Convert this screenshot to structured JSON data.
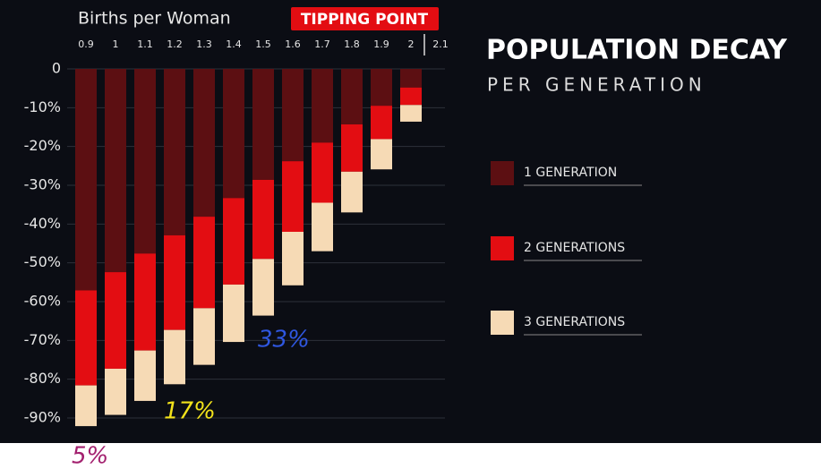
{
  "chart_data": {
    "type": "stacked_bar",
    "title": "POPULATION DECAY",
    "subtitle": "PER GENERATION",
    "x_label": "Births per Woman",
    "marker_label": "TIPPING POINT",
    "categories": [
      "0.9",
      "1",
      "1.1",
      "1.2",
      "1.3",
      "1.4",
      "1.5",
      "1.6",
      "1.7",
      "1.8",
      "1.9",
      "2",
      "2.1"
    ],
    "series": [
      {
        "name": "1 GENERATION",
        "color": "#5c0f12",
        "values": [
          -57.1,
          -52.4,
          -47.6,
          -42.9,
          -38.1,
          -33.3,
          -28.6,
          -23.8,
          -19.0,
          -14.3,
          -9.5,
          -4.8,
          0
        ]
      },
      {
        "name": "2 GENERATIONS",
        "color": "#e30d12",
        "values": [
          -24.5,
          -24.9,
          -25.0,
          -24.4,
          -23.6,
          -22.3,
          -20.4,
          -18.2,
          -15.5,
          -12.2,
          -8.6,
          -4.5,
          0
        ]
      },
      {
        "name": "3 GENERATIONS",
        "color": "#f6dab5",
        "values": [
          -10.5,
          -11.9,
          -13.0,
          -14.0,
          -14.6,
          -14.8,
          -14.6,
          -13.8,
          -12.5,
          -10.5,
          -7.8,
          -4.3,
          0
        ]
      }
    ],
    "ylim": [
      -95,
      0
    ],
    "yticks": [
      0,
      {
        "value": -10,
        "label": "-10%"
      },
      {
        "value": -20,
        "label": "-20%"
      },
      {
        "value": -30,
        "label": "-30%"
      },
      {
        "value": -40,
        "label": "-40%"
      },
      {
        "value": -50,
        "label": "-50%"
      },
      {
        "value": -60,
        "label": "-60%"
      },
      {
        "value": -70,
        "label": "-70%"
      },
      {
        "value": -80,
        "label": "-80%"
      },
      {
        "value": -90,
        "label": "-90%"
      }
    ],
    "grid": true,
    "annotations": [
      {
        "text": "5%",
        "color": "#a3216f"
      },
      {
        "text": "17%",
        "color": "#f2e21b"
      },
      {
        "text": "33%",
        "color": "#2f57e0"
      }
    ]
  }
}
